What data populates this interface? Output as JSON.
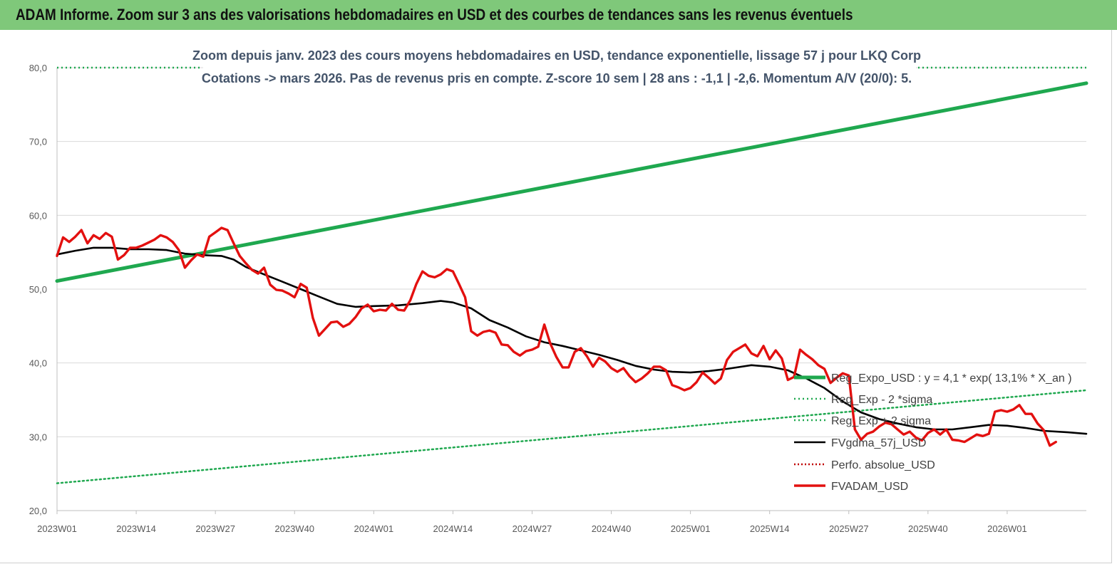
{
  "header": {
    "title": "ADAM Informe. Zoom sur 3 ans des valorisations hebdomadaires en USD et des courbes de tendances sans les revenus éventuels"
  },
  "colors": {
    "banner": "#7fc87a",
    "reg_expo": "#1fa84f",
    "sigma": "#1fa84f",
    "fvgdma": "#000000",
    "fvadam": "#e3100f",
    "perfo": "#c00000"
  },
  "chart_data": {
    "type": "line",
    "title": "Zoom depuis janv. 2023 des cours moyens hebdomadaires en USD, tendance exponentielle, lissage 57 j pour LKQ Corp",
    "subtitle": "Cotations -> mars 2026. Pas de revenus pris en  compte. Z-score 10 sem  | 28 ans : -1,1 | -2,6. Momentum A/V (20/0): 5.",
    "ylim": [
      20,
      80
    ],
    "yticks": [
      "20,0",
      "30,0",
      "40,0",
      "50,0",
      "60,0",
      "70,0",
      "80,0"
    ],
    "xticks": [
      "2023W01",
      "2023W14",
      "2023W27",
      "2023W40",
      "2024W01",
      "2024W14",
      "2024W27",
      "2024W40",
      "2025W01",
      "2025W14",
      "2025W27",
      "2025W40",
      "2026W01"
    ],
    "weeks_total": 169,
    "series": [
      {
        "name": "Reg_Expo_USD : y = 4,1 * exp( 13,1% *  X_an )",
        "style": "thick",
        "weeks": [
          0,
          169
        ],
        "start": 51.1,
        "end": 77.9
      },
      {
        "name": "Reg_Exp - 2 *sigma",
        "style": "dotted",
        "weeks": [
          0,
          169
        ],
        "start": 23.7,
        "end": 36.3
      },
      {
        "name": "Reg_Exp + 2 sigma",
        "style": "dotted",
        "weeks": [
          0,
          169
        ],
        "start": 80.0,
        "end": 80.0
      },
      {
        "name": "FVgdma_57j_USD",
        "style": "line",
        "points": [
          [
            0,
            54.7
          ],
          [
            3,
            55.2
          ],
          [
            6,
            55.6
          ],
          [
            9,
            55.6
          ],
          [
            12,
            55.4
          ],
          [
            15,
            55.4
          ],
          [
            18,
            55.3
          ],
          [
            21,
            54.8
          ],
          [
            24,
            54.6
          ],
          [
            27,
            54.5
          ],
          [
            29,
            54.0
          ],
          [
            31,
            53.0
          ],
          [
            34,
            52.0
          ],
          [
            37,
            51.0
          ],
          [
            40,
            50.0
          ],
          [
            43,
            49.0
          ],
          [
            46,
            48.0
          ],
          [
            49,
            47.6
          ],
          [
            52,
            47.7
          ],
          [
            56,
            47.8
          ],
          [
            60,
            48.1
          ],
          [
            63,
            48.4
          ],
          [
            65,
            48.2
          ],
          [
            68,
            47.4
          ],
          [
            71,
            45.8
          ],
          [
            74,
            44.8
          ],
          [
            77,
            43.6
          ],
          [
            80,
            42.8
          ],
          [
            83,
            42.3
          ],
          [
            86,
            41.7
          ],
          [
            89,
            41.1
          ],
          [
            92,
            40.4
          ],
          [
            95,
            39.6
          ],
          [
            98,
            39.1
          ],
          [
            101,
            38.8
          ],
          [
            104,
            38.7
          ],
          [
            107,
            38.9
          ],
          [
            110,
            39.2
          ],
          [
            114,
            39.7
          ],
          [
            117,
            39.5
          ],
          [
            120,
            39.0
          ],
          [
            123,
            37.9
          ],
          [
            126,
            36.6
          ],
          [
            129,
            34.8
          ],
          [
            132,
            33.3
          ],
          [
            135,
            32.4
          ],
          [
            138,
            31.8
          ],
          [
            141,
            31.3
          ],
          [
            144,
            31.0
          ],
          [
            147,
            31.0
          ],
          [
            150,
            31.3
          ],
          [
            153,
            31.6
          ],
          [
            156,
            31.5
          ],
          [
            159,
            31.2
          ],
          [
            162,
            30.8
          ],
          [
            166,
            30.6
          ],
          [
            169,
            30.4
          ]
        ]
      },
      {
        "name": "Perfo. absolue_USD",
        "style": "dotted-red"
      },
      {
        "name": "FVADAM_USD",
        "style": "thick",
        "points": [
          [
            0,
            54.5
          ],
          [
            1,
            57.0
          ],
          [
            2,
            56.4
          ],
          [
            3,
            57.1
          ],
          [
            4,
            58.0
          ],
          [
            5,
            56.2
          ],
          [
            6,
            57.3
          ],
          [
            7,
            56.8
          ],
          [
            8,
            57.6
          ],
          [
            9,
            57.1
          ],
          [
            10,
            54.0
          ],
          [
            11,
            54.6
          ],
          [
            12,
            55.6
          ],
          [
            13,
            55.6
          ],
          [
            14,
            55.9
          ],
          [
            15,
            56.3
          ],
          [
            16,
            56.7
          ],
          [
            17,
            57.3
          ],
          [
            18,
            57.0
          ],
          [
            19,
            56.4
          ],
          [
            20,
            55.3
          ],
          [
            21,
            52.9
          ],
          [
            22,
            53.9
          ],
          [
            23,
            54.7
          ],
          [
            24,
            54.4
          ],
          [
            25,
            57.1
          ],
          [
            26,
            57.7
          ],
          [
            27,
            58.3
          ],
          [
            28,
            58.0
          ],
          [
            29,
            56.2
          ],
          [
            30,
            54.5
          ],
          [
            31,
            53.5
          ],
          [
            32,
            52.6
          ],
          [
            33,
            52.1
          ],
          [
            34,
            52.9
          ],
          [
            35,
            50.6
          ],
          [
            36,
            49.9
          ],
          [
            37,
            49.8
          ],
          [
            38,
            49.4
          ],
          [
            39,
            48.9
          ],
          [
            40,
            50.7
          ],
          [
            41,
            50.2
          ],
          [
            42,
            46.1
          ],
          [
            43,
            43.7
          ],
          [
            44,
            44.6
          ],
          [
            45,
            45.5
          ],
          [
            46,
            45.6
          ],
          [
            47,
            44.9
          ],
          [
            48,
            45.3
          ],
          [
            49,
            46.2
          ],
          [
            50,
            47.4
          ],
          [
            51,
            47.9
          ],
          [
            52,
            47.0
          ],
          [
            53,
            47.2
          ],
          [
            54,
            47.1
          ],
          [
            55,
            48.0
          ],
          [
            56,
            47.2
          ],
          [
            57,
            47.1
          ],
          [
            58,
            48.5
          ],
          [
            59,
            50.7
          ],
          [
            60,
            52.4
          ],
          [
            61,
            51.8
          ],
          [
            62,
            51.6
          ],
          [
            63,
            52.0
          ],
          [
            64,
            52.7
          ],
          [
            65,
            52.4
          ],
          [
            66,
            50.7
          ],
          [
            67,
            48.9
          ],
          [
            68,
            44.3
          ],
          [
            69,
            43.7
          ],
          [
            70,
            44.2
          ],
          [
            71,
            44.4
          ],
          [
            72,
            44.1
          ],
          [
            73,
            42.5
          ],
          [
            74,
            42.4
          ],
          [
            75,
            41.5
          ],
          [
            76,
            41.0
          ],
          [
            77,
            41.6
          ],
          [
            78,
            41.8
          ],
          [
            79,
            42.2
          ],
          [
            80,
            45.2
          ],
          [
            81,
            42.6
          ],
          [
            82,
            40.8
          ],
          [
            83,
            39.4
          ],
          [
            84,
            39.4
          ],
          [
            85,
            41.5
          ],
          [
            86,
            42.0
          ],
          [
            87,
            40.9
          ],
          [
            88,
            39.5
          ],
          [
            89,
            40.7
          ],
          [
            90,
            40.2
          ],
          [
            91,
            39.3
          ],
          [
            92,
            38.8
          ],
          [
            93,
            39.3
          ],
          [
            94,
            38.2
          ],
          [
            95,
            37.4
          ],
          [
            96,
            37.9
          ],
          [
            97,
            38.6
          ],
          [
            98,
            39.5
          ],
          [
            99,
            39.5
          ],
          [
            100,
            39.0
          ],
          [
            101,
            37.0
          ],
          [
            102,
            36.7
          ],
          [
            103,
            36.3
          ],
          [
            104,
            36.6
          ],
          [
            105,
            37.4
          ],
          [
            106,
            38.7
          ],
          [
            107,
            38.0
          ],
          [
            108,
            37.2
          ],
          [
            109,
            37.9
          ],
          [
            110,
            40.4
          ],
          [
            111,
            41.5
          ],
          [
            112,
            42.0
          ],
          [
            113,
            42.5
          ],
          [
            114,
            41.3
          ],
          [
            115,
            40.9
          ],
          [
            116,
            42.3
          ],
          [
            117,
            40.5
          ],
          [
            118,
            41.7
          ],
          [
            119,
            40.6
          ],
          [
            120,
            37.7
          ],
          [
            121,
            38.1
          ],
          [
            122,
            41.8
          ],
          [
            123,
            41.1
          ],
          [
            124,
            40.5
          ],
          [
            125,
            39.7
          ],
          [
            126,
            39.2
          ],
          [
            127,
            37.3
          ],
          [
            128,
            38.0
          ],
          [
            129,
            38.6
          ],
          [
            130,
            38.3
          ],
          [
            131,
            31.0
          ],
          [
            132,
            29.6
          ],
          [
            133,
            30.4
          ],
          [
            134,
            30.7
          ],
          [
            135,
            31.4
          ],
          [
            136,
            31.9
          ],
          [
            137,
            31.7
          ],
          [
            138,
            31.0
          ],
          [
            139,
            30.3
          ],
          [
            140,
            30.7
          ],
          [
            141,
            29.9
          ],
          [
            142,
            29.5
          ],
          [
            143,
            30.5
          ],
          [
            144,
            31.0
          ],
          [
            145,
            30.3
          ],
          [
            146,
            31.0
          ],
          [
            147,
            29.6
          ],
          [
            148,
            29.5
          ],
          [
            149,
            29.3
          ],
          [
            150,
            29.8
          ],
          [
            151,
            30.3
          ],
          [
            152,
            30.1
          ],
          [
            153,
            30.4
          ],
          [
            154,
            33.4
          ],
          [
            155,
            33.6
          ],
          [
            156,
            33.4
          ],
          [
            157,
            33.7
          ],
          [
            158,
            34.3
          ],
          [
            159,
            33.1
          ],
          [
            160,
            33.1
          ],
          [
            161,
            31.8
          ],
          [
            162,
            30.9
          ],
          [
            163,
            28.8
          ],
          [
            164,
            29.3
          ]
        ]
      }
    ]
  }
}
